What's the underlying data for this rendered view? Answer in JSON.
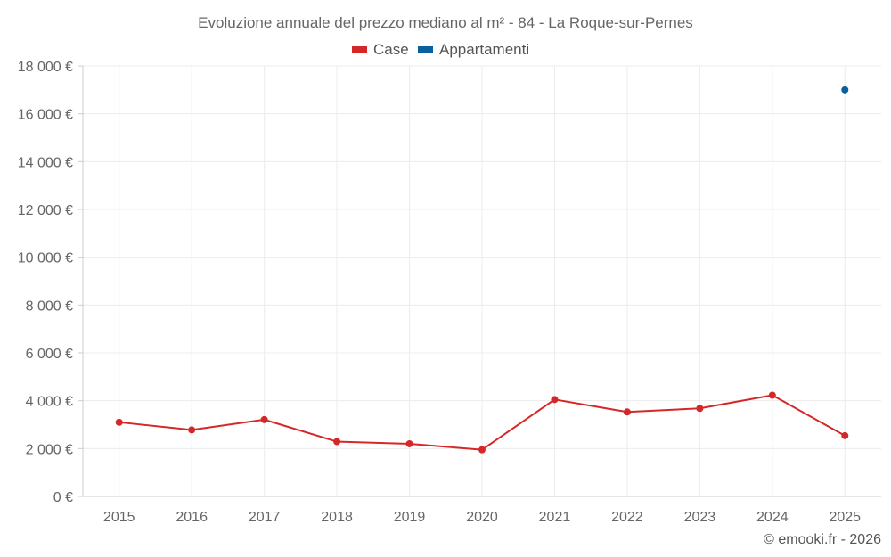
{
  "chart_data": {
    "type": "line",
    "title": "Evoluzione annuale del prezzo mediano al m² - 84 - La Roque-sur-Pernes",
    "categories": [
      "2015",
      "2016",
      "2017",
      "2018",
      "2019",
      "2020",
      "2021",
      "2022",
      "2023",
      "2024",
      "2025"
    ],
    "series": [
      {
        "name": "Case",
        "color": "#d62728",
        "values": [
          3100,
          2780,
          3210,
          2290,
          2200,
          1950,
          4050,
          3530,
          3680,
          4230,
          2540
        ]
      },
      {
        "name": "Appartamenti",
        "color": "#0a5f9e",
        "values": [
          null,
          null,
          null,
          null,
          null,
          null,
          null,
          null,
          null,
          null,
          17000
        ]
      }
    ],
    "ylim": [
      0,
      18000
    ],
    "y_ticks": [
      0,
      2000,
      4000,
      6000,
      8000,
      10000,
      12000,
      14000,
      16000,
      18000
    ],
    "y_tick_labels": [
      "0 €",
      "2 000 €",
      "4 000 €",
      "6 000 €",
      "8 000 €",
      "10 000 €",
      "12 000 €",
      "14 000 €",
      "16 000 €",
      "18 000 €"
    ],
    "grid": true,
    "legend_position": "top-center",
    "xlabel": "",
    "ylabel": ""
  },
  "copyright": "© emooki.fr - 2026"
}
